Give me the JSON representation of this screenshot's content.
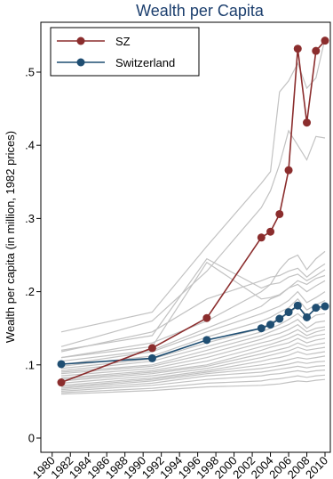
{
  "chart_data": {
    "type": "line",
    "title": "Wealth per Capita",
    "xlabel": "",
    "ylabel": "Wealth per capita (in million, 1982 prices)",
    "xlim": [
      1980,
      2011
    ],
    "ylim": [
      0,
      0.55
    ],
    "x_ticks": [
      1980,
      1982,
      1984,
      1986,
      1988,
      1990,
      1992,
      1994,
      1996,
      1998,
      2000,
      2002,
      2004,
      2006,
      2008,
      2010
    ],
    "x_tick_labels": [
      "1980",
      "1982",
      "1984",
      "1986",
      "1988",
      "1990",
      "1992",
      "1994",
      "1996",
      "1998",
      "2000",
      "2002",
      "2004",
      "2006",
      "2008",
      "2010"
    ],
    "y_ticks": [
      0,
      0.1,
      0.2,
      0.3,
      0.4,
      0.5
    ],
    "y_tick_labels": [
      "0",
      ".1",
      ".2",
      ".3",
      ".4",
      ".5"
    ],
    "grid": false,
    "legend_position": "top-left",
    "series": [
      {
        "name": "SZ",
        "color": "#8b2d2d",
        "marker": "circle",
        "x": [
          1981,
          1991,
          1997,
          2003,
          2004,
          2005,
          2006,
          2007,
          2008,
          2009,
          2010
        ],
        "y": [
          0.076,
          0.123,
          0.164,
          0.274,
          0.282,
          0.306,
          0.366,
          0.532,
          0.431,
          0.529,
          0.543
        ]
      },
      {
        "name": "Switzerland",
        "color": "#1f4e72",
        "marker": "circle",
        "x": [
          1981,
          1991,
          1997,
          2003,
          2004,
          2005,
          2006,
          2007,
          2008,
          2009,
          2010
        ],
        "y": [
          0.101,
          0.109,
          0.134,
          0.15,
          0.155,
          0.163,
          0.172,
          0.181,
          0.165,
          0.178,
          0.18
        ]
      }
    ],
    "background_series": {
      "color": "#c2c2c2",
      "x": [
        1981,
        1991,
        1997,
        2003,
        2004,
        2005,
        2006,
        2007,
        2008,
        2009,
        2010
      ],
      "lines": [
        [
          0.145,
          0.172,
          0.262,
          0.348,
          0.364,
          0.473,
          0.488,
          0.512,
          0.478,
          0.492,
          0.546
        ],
        [
          0.125,
          0.16,
          0.228,
          0.315,
          0.338,
          0.374,
          0.42,
          0.4,
          0.38,
          0.412,
          0.41
        ],
        [
          0.12,
          0.14,
          0.245,
          0.205,
          0.21,
          0.23,
          0.244,
          0.25,
          0.23,
          0.245,
          0.255
        ],
        [
          0.118,
          0.145,
          0.19,
          0.215,
          0.22,
          0.222,
          0.228,
          0.232,
          0.22,
          0.23,
          0.238
        ],
        [
          0.11,
          0.13,
          0.16,
          0.2,
          0.21,
          0.212,
          0.22,
          0.224,
          0.215,
          0.222,
          0.23
        ],
        [
          0.105,
          0.12,
          0.15,
          0.18,
          0.19,
          0.195,
          0.205,
          0.21,
          0.2,
          0.208,
          0.215
        ],
        [
          0.1,
          0.118,
          0.145,
          0.17,
          0.175,
          0.18,
          0.188,
          0.2,
          0.185,
          0.192,
          0.2
        ],
        [
          0.098,
          0.112,
          0.138,
          0.16,
          0.165,
          0.172,
          0.178,
          0.19,
          0.175,
          0.182,
          0.188
        ],
        [
          0.095,
          0.108,
          0.13,
          0.15,
          0.158,
          0.163,
          0.17,
          0.18,
          0.168,
          0.175,
          0.178
        ],
        [
          0.092,
          0.105,
          0.125,
          0.145,
          0.15,
          0.155,
          0.162,
          0.17,
          0.16,
          0.168,
          0.17
        ],
        [
          0.09,
          0.1,
          0.12,
          0.14,
          0.145,
          0.15,
          0.155,
          0.162,
          0.15,
          0.158,
          0.16
        ],
        [
          0.088,
          0.098,
          0.115,
          0.135,
          0.14,
          0.143,
          0.148,
          0.155,
          0.145,
          0.15,
          0.152
        ],
        [
          0.085,
          0.095,
          0.11,
          0.13,
          0.133,
          0.137,
          0.142,
          0.148,
          0.14,
          0.145,
          0.148
        ],
        [
          0.082,
          0.092,
          0.105,
          0.125,
          0.128,
          0.132,
          0.136,
          0.142,
          0.136,
          0.14,
          0.142
        ],
        [
          0.08,
          0.09,
          0.1,
          0.12,
          0.124,
          0.127,
          0.13,
          0.136,
          0.13,
          0.134,
          0.136
        ],
        [
          0.078,
          0.088,
          0.098,
          0.115,
          0.118,
          0.121,
          0.124,
          0.13,
          0.125,
          0.128,
          0.13
        ],
        [
          0.075,
          0.085,
          0.095,
          0.11,
          0.113,
          0.116,
          0.119,
          0.124,
          0.12,
          0.122,
          0.124
        ],
        [
          0.072,
          0.082,
          0.092,
          0.105,
          0.108,
          0.11,
          0.113,
          0.118,
          0.114,
          0.116,
          0.118
        ],
        [
          0.07,
          0.08,
          0.09,
          0.1,
          0.102,
          0.104,
          0.107,
          0.11,
          0.108,
          0.11,
          0.112
        ],
        [
          0.068,
          0.078,
          0.088,
          0.095,
          0.097,
          0.099,
          0.101,
          0.104,
          0.102,
          0.104,
          0.105
        ],
        [
          0.066,
          0.075,
          0.085,
          0.09,
          0.092,
          0.094,
          0.096,
          0.098,
          0.096,
          0.098,
          0.099
        ],
        [
          0.064,
          0.072,
          0.08,
          0.085,
          0.087,
          0.088,
          0.09,
          0.092,
          0.09,
          0.092,
          0.093
        ],
        [
          0.062,
          0.068,
          0.075,
          0.078,
          0.08,
          0.081,
          0.083,
          0.085,
          0.083,
          0.085,
          0.086
        ],
        [
          0.06,
          0.065,
          0.07,
          0.072,
          0.073,
          0.074,
          0.076,
          0.078,
          0.077,
          0.079,
          0.08
        ],
        [
          0.11,
          0.125,
          0.24,
          0.19,
          0.192,
          0.196,
          0.205,
          0.215,
          0.21,
          0.218,
          0.222
        ]
      ]
    }
  }
}
